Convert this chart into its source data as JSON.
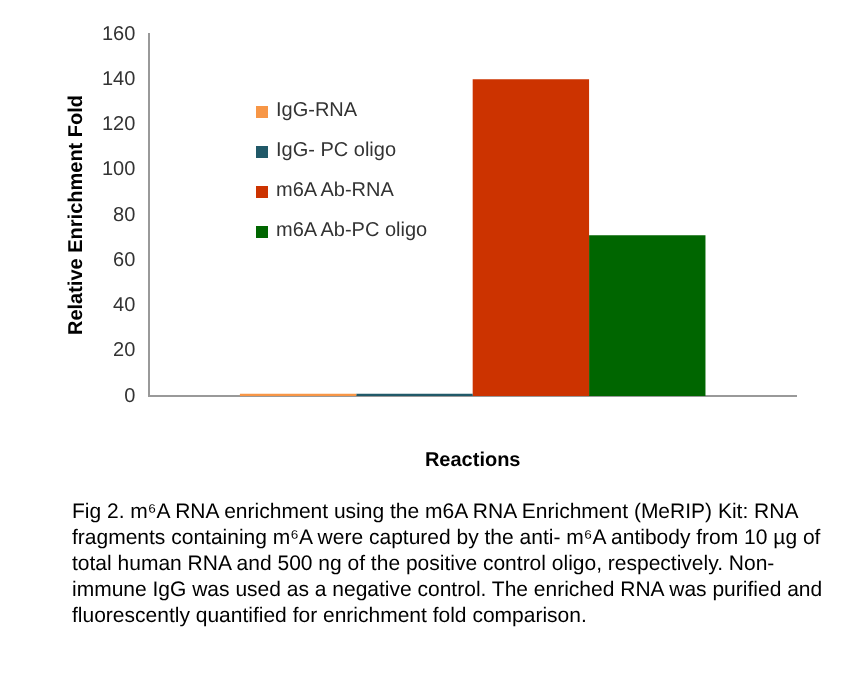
{
  "chart_data": {
    "type": "bar",
    "xlabel": "Reactions",
    "ylabel": "Relative Enrichment Fold",
    "categories": [
      null
    ],
    "series": [
      {
        "name": "IgG-RNA",
        "color": "#f79646",
        "values": [
          1
        ]
      },
      {
        "name": "IgG- PC oligo",
        "color": "#215968",
        "values": [
          1
        ]
      },
      {
        "name": "m6A Ab-RNA",
        "color": "#cc3300",
        "values": [
          140
        ]
      },
      {
        "name": "m6A Ab-PC oligo",
        "color": "#006600",
        "values": [
          71
        ]
      }
    ],
    "ylim": [
      0,
      160
    ],
    "yticks": [
      0,
      20,
      40,
      60,
      80,
      100,
      120,
      140,
      160
    ],
    "grid": false,
    "legend": "top left",
    "annotations": [
      "Fig 2. m⁶A RNA enrichment using the m6A RNA Enrichment (MeRIP) Kit: RNA fragments containing m⁶A were captured by the anti- m⁶A antibody from 10 µg of total human RNA and 500 ng of the positive control oligo, respectively. Non-immune IgG was used as a negative control. The enriched RNA was purified and fluorescently quantified for enrichment fold comparison."
    ]
  }
}
